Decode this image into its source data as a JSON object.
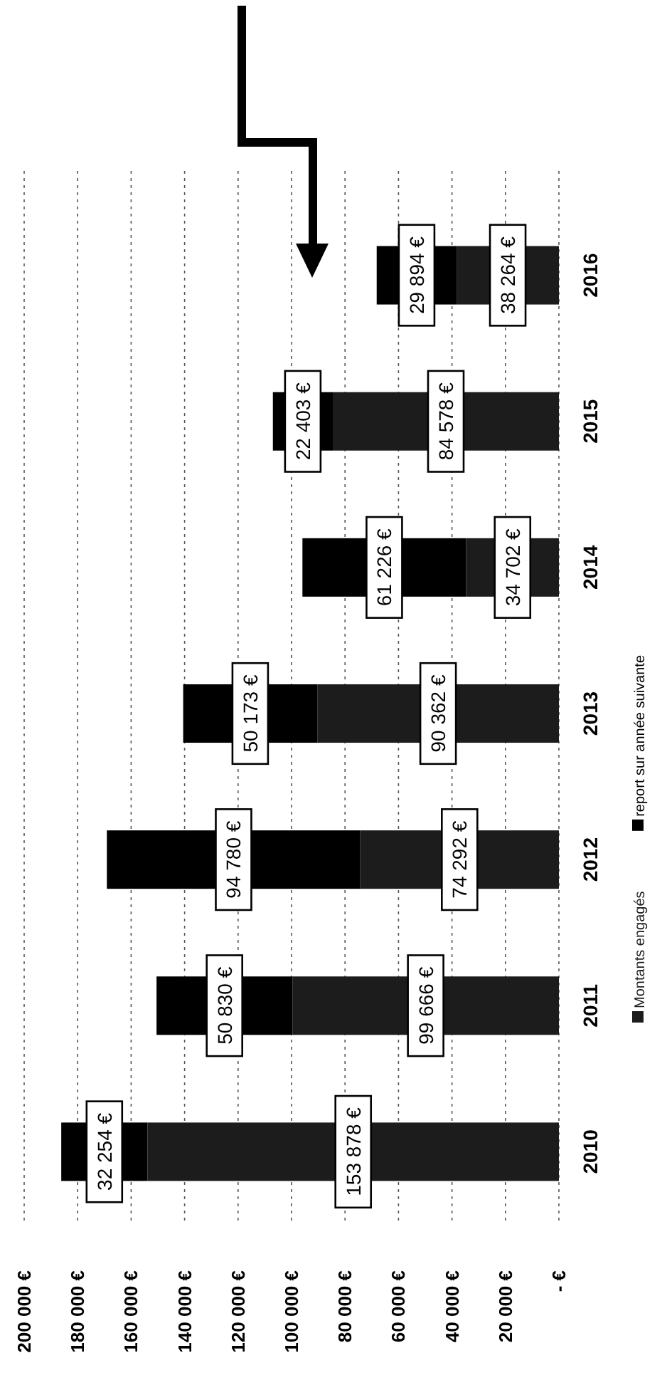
{
  "chart_data": {
    "type": "bar",
    "stacked": true,
    "orientation": "horizontal",
    "categories": [
      "2016",
      "2015",
      "2014",
      "2013",
      "2012",
      "2011",
      "2010"
    ],
    "series": [
      {
        "name": "Montants engagés",
        "color": "#1c1c1c",
        "values": [
          38264,
          84578,
          34702,
          90362,
          74292,
          99666,
          153878
        ],
        "value_labels": [
          "38 264 €",
          "84 578 €",
          "34 702 €",
          "90 362 €",
          "74 292 €",
          "99 666 €",
          "153 878 €"
        ]
      },
      {
        "name": "report sur année suivante",
        "color": "#000000",
        "values": [
          29894,
          22403,
          61226,
          50173,
          94780,
          50830,
          32254
        ],
        "value_labels": [
          "29 894 €",
          "22 403 €",
          "61 226 €",
          "50 173 €",
          "94 780 €",
          "50 830 €",
          "32 254 €"
        ]
      }
    ],
    "xlim": [
      200000,
      0
    ],
    "xticks": [
      {
        "value": 200000,
        "label": "200 000 €"
      },
      {
        "value": 180000,
        "label": "180 000 €"
      },
      {
        "value": 160000,
        "label": "160 000 €"
      },
      {
        "value": 140000,
        "label": "140 000 €"
      },
      {
        "value": 120000,
        "label": "120 000 €"
      },
      {
        "value": 100000,
        "label": "100 000 €"
      },
      {
        "value": 80000,
        "label": "80 000 €"
      },
      {
        "value": 60000,
        "label": "60 000 €"
      },
      {
        "value": 40000,
        "label": "40 000 €"
      },
      {
        "value": 20000,
        "label": "20 000 €"
      },
      {
        "value": 0,
        "label": "- €"
      }
    ],
    "grid": "x",
    "legend": "right"
  }
}
